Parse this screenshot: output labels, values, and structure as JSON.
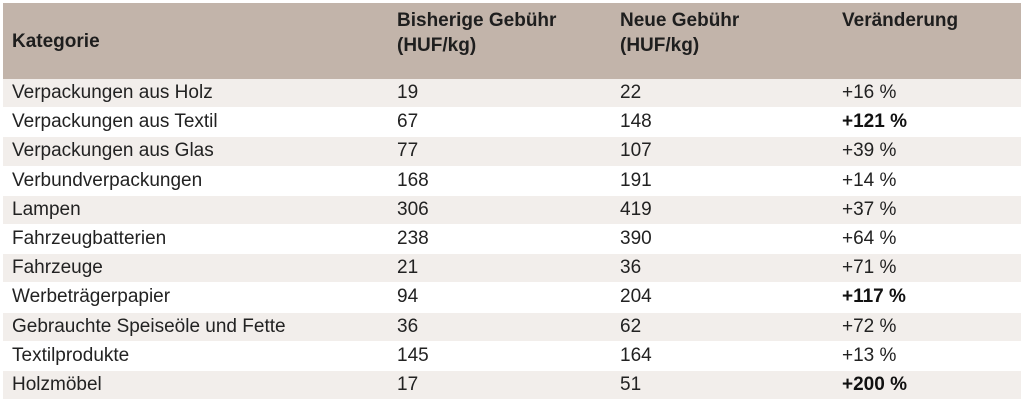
{
  "table": {
    "headers": [
      "Kategorie",
      "Bisherige Gebühr\n(HUF/kg)",
      "Neue Gebühr\n(HUF/kg)",
      "Veränderung"
    ],
    "rows": [
      {
        "kategorie": "Verpackungen aus Holz",
        "bisherig": "19",
        "neu": "22",
        "veraenderung": "+16 %",
        "highlight": false
      },
      {
        "kategorie": "Verpackungen aus Textil",
        "bisherig": "67",
        "neu": "148",
        "veraenderung": "+121 %",
        "highlight": true
      },
      {
        "kategorie": "Verpackungen aus Glas",
        "bisherig": "77",
        "neu": "107",
        "veraenderung": "+39 %",
        "highlight": false
      },
      {
        "kategorie": "Verbundverpackungen",
        "bisherig": "168",
        "neu": "191",
        "veraenderung": "+14 %",
        "highlight": false
      },
      {
        "kategorie": "Lampen",
        "bisherig": "306",
        "neu": "419",
        "veraenderung": "+37 %",
        "highlight": false
      },
      {
        "kategorie": "Fahrzeugbatterien",
        "bisherig": "238",
        "neu": "390",
        "veraenderung": "+64 %",
        "highlight": false
      },
      {
        "kategorie": "Fahrzeuge",
        "bisherig": "21",
        "neu": "36",
        "veraenderung": "+71 %",
        "highlight": false
      },
      {
        "kategorie": "Werbeträgerpapier",
        "bisherig": "94",
        "neu": "204",
        "veraenderung": "+117 %",
        "highlight": true
      },
      {
        "kategorie": "Gebrauchte Speiseöle und Fette",
        "bisherig": "36",
        "neu": "62",
        "veraenderung": "+72 %",
        "highlight": false
      },
      {
        "kategorie": "Textilprodukte",
        "bisherig": "145",
        "neu": "164",
        "veraenderung": "+13 %",
        "highlight": false
      },
      {
        "kategorie": "Holzmöbel",
        "bisherig": "17",
        "neu": "51",
        "veraenderung": "+200 %",
        "highlight": true
      }
    ]
  },
  "colors": {
    "header_bg": "#c2b4aa",
    "row_alt_bg": "#f2eeeb",
    "row_bg": "#ffffff"
  }
}
